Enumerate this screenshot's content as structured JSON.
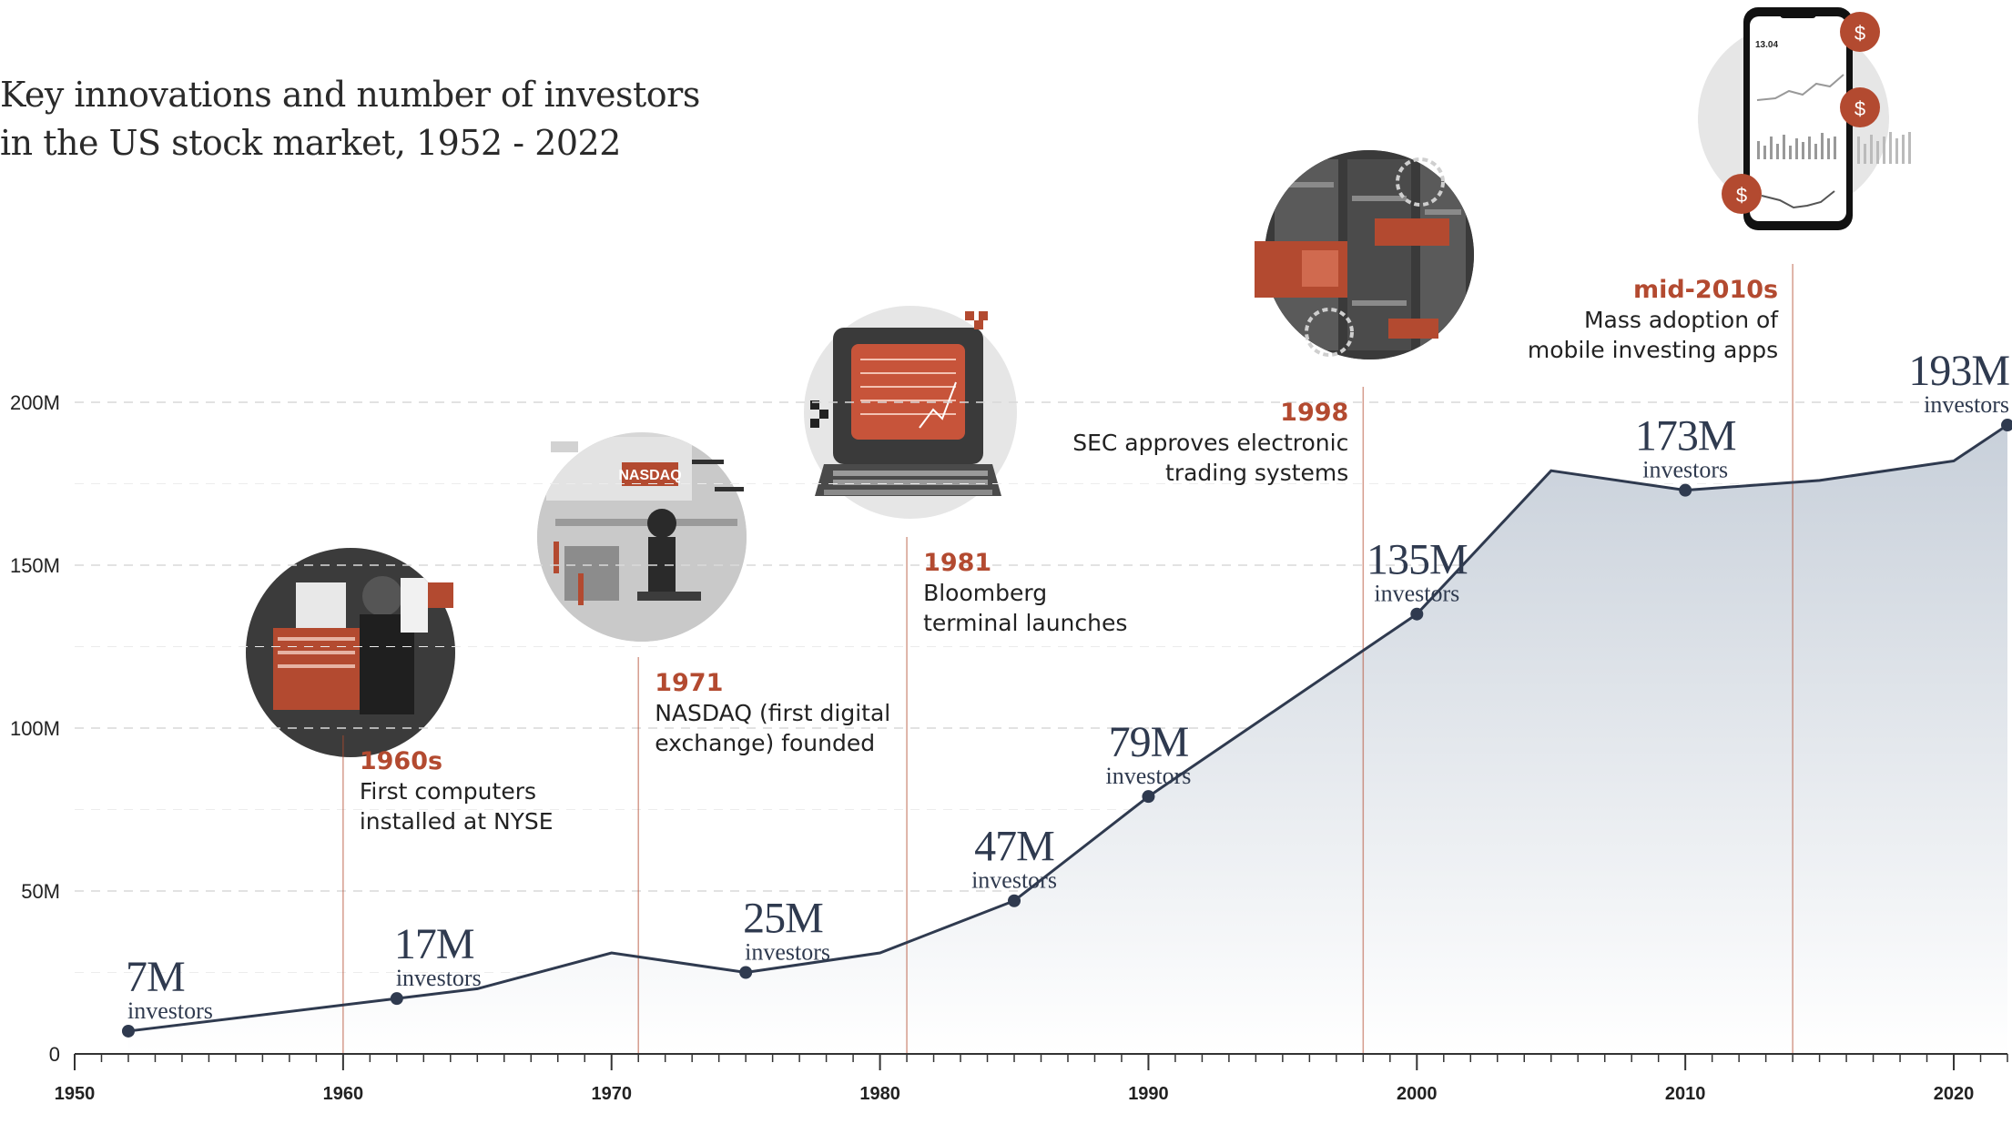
{
  "title": {
    "line1": "Key innovations and number of investors",
    "line2": "in the US stock market, 1952 - 2022"
  },
  "colors": {
    "line": "#2f3a4f",
    "accent": "#b34a30",
    "area_top": "#c8d0da",
    "area_bottom": "#ffffff",
    "grid": "#d9d9d9"
  },
  "chart_data": {
    "type": "area",
    "xlim": [
      1950,
      2022
    ],
    "ylim": [
      0,
      200
    ],
    "x_ticks": [
      1950,
      1960,
      1970,
      1980,
      1990,
      2000,
      2010,
      2020
    ],
    "y_ticks": [
      {
        "value": 0,
        "label": "0"
      },
      {
        "value": 50,
        "label": "50M"
      },
      {
        "value": 100,
        "label": "100M"
      },
      {
        "value": 150,
        "label": "150M"
      },
      {
        "value": 200,
        "label": "200M"
      }
    ],
    "grid": true,
    "series": [
      {
        "points": [
          {
            "x": 1952,
            "y": 7
          },
          {
            "x": 1962,
            "y": 17
          },
          {
            "x": 1965,
            "y": 20
          },
          {
            "x": 1970,
            "y": 31
          },
          {
            "x": 1975,
            "y": 25
          },
          {
            "x": 1980,
            "y": 31
          },
          {
            "x": 1985,
            "y": 47
          },
          {
            "x": 1990,
            "y": 79
          },
          {
            "x": 2000,
            "y": 135
          },
          {
            "x": 2005,
            "y": 179
          },
          {
            "x": 2010,
            "y": 173
          },
          {
            "x": 2015,
            "y": 176
          },
          {
            "x": 2020,
            "y": 182
          },
          {
            "x": 2022,
            "y": 193
          }
        ]
      }
    ],
    "point_labels": [
      {
        "x": 1952,
        "y": 7,
        "value": "7M",
        "sub": "investors",
        "anchor": "start"
      },
      {
        "x": 1962,
        "y": 17,
        "value": "17M",
        "sub": "investors",
        "anchor": "start"
      },
      {
        "x": 1975,
        "y": 25,
        "value": "25M",
        "sub": "investors",
        "anchor": "start"
      },
      {
        "x": 1985,
        "y": 47,
        "value": "47M",
        "sub": "investors",
        "anchor": "middle"
      },
      {
        "x": 1990,
        "y": 79,
        "value": "79M",
        "sub": "investors",
        "anchor": "middle"
      },
      {
        "x": 2000,
        "y": 135,
        "value": "135M",
        "sub": "investors",
        "anchor": "middle"
      },
      {
        "x": 2010,
        "y": 173,
        "value": "173M",
        "sub": "investors",
        "anchor": "middle"
      },
      {
        "x": 2022,
        "y": 193,
        "value": "193M",
        "sub": "investors",
        "anchor": "end"
      }
    ],
    "annotations": [
      {
        "x": 1960,
        "year": "1960s",
        "lines": [
          "First computers",
          "installed at NYSE"
        ],
        "align": "start"
      },
      {
        "x": 1971,
        "year": "1971",
        "lines": [
          "NASDAQ (first digital",
          "exchange) founded"
        ],
        "align": "start"
      },
      {
        "x": 1981,
        "year": "1981",
        "lines": [
          "Bloomberg",
          "terminal launches"
        ],
        "align": "start"
      },
      {
        "x": 1998,
        "year": "1998",
        "lines": [
          "SEC approves electronic",
          "trading systems"
        ],
        "align": "end"
      },
      {
        "x": 2014,
        "year": "mid-2010s",
        "lines": [
          "Mass adoption of",
          "mobile investing apps"
        ],
        "align": "end"
      }
    ]
  },
  "illustrations": {
    "nasdaq_sign": "NASDAQ",
    "phone_price": "13.04",
    "coin_symbol": "$"
  }
}
